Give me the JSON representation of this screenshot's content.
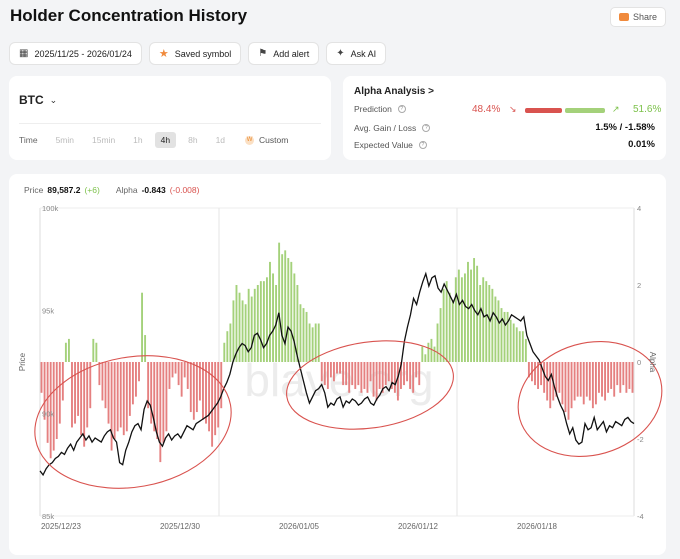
{
  "page_title": "Holder Concentration History",
  "share_label": "Share",
  "toolbar": {
    "date_range": "2025/11/25 - 2026/01/24",
    "saved_label": "Saved symbol",
    "alert_label": "Add alert",
    "ai_label": "Ask AI",
    "icons": [
      "calendar-icon",
      "star-icon",
      "bell-icon",
      "ai-icon"
    ]
  },
  "selector": {
    "symbol": "BTC",
    "time_label": "Time",
    "timeframes": [
      "5min",
      "15min",
      "1h",
      "4h",
      "8h",
      "1d"
    ],
    "active_timeframe": "4h",
    "custom_label": "Custom"
  },
  "alpha": {
    "title": "Alpha Analysis",
    "title_arrow": ">",
    "prediction_label": "Prediction",
    "prediction_down": "48.4%",
    "prediction_up": "51.6%",
    "gain_loss_label": "Avg. Gain / Loss",
    "gain_loss_value": "1.5% / -1.58%",
    "expected_label": "Expected Value",
    "expected_value": "0.01%",
    "colors": {
      "down": "#d9534f",
      "up": "#7cc14a"
    }
  },
  "legend": {
    "price_label": "Price",
    "price_value": "89,587.2",
    "price_change": "(+6)",
    "alpha_label": "Alpha",
    "alpha_value": "-0.843",
    "alpha_change": "(-0.008)"
  },
  "chart_data": {
    "type": "bar",
    "xlabel": "",
    "ylabel_left": "Price",
    "ylabel_right": "Alpha",
    "x_ticks": [
      "2025/12/23",
      "2025/12/30",
      "2026/01/05",
      "2026/01/12",
      "2026/01/18"
    ],
    "y_left_ticks": [
      "100k",
      "95k",
      "90k",
      "85k"
    ],
    "y_left_range": [
      85000,
      100000
    ],
    "y_right_ticks": [
      "4",
      "2",
      "0",
      "-2",
      "-4"
    ],
    "y_right_range": [
      -4,
      4
    ],
    "watermark": "blave.org",
    "colors": {
      "positive": "#a4d17a",
      "negative": "#e58080",
      "price": "#111111",
      "annotation": "#d9534f"
    },
    "alpha_series": [
      -0.8,
      -1.5,
      -2.1,
      -2.5,
      -2.3,
      -2.0,
      -1.6,
      -1.0,
      0.5,
      0.6,
      -1.7,
      -1.6,
      -1.4,
      -1.9,
      -2.2,
      -1.7,
      -1.2,
      0.6,
      0.5,
      -0.6,
      -1.0,
      -1.2,
      -1.6,
      -2.3,
      -2.0,
      -1.8,
      -1.7,
      -1.9,
      -1.8,
      -1.4,
      -1.1,
      -0.9,
      -0.5,
      1.8,
      0.7,
      -1.2,
      -1.6,
      -1.8,
      -2.0,
      -2.6,
      -2.1,
      -1.8,
      -0.7,
      -0.4,
      -0.3,
      -0.6,
      -0.9,
      -0.4,
      -0.7,
      -1.3,
      -1.5,
      -1.3,
      -1.0,
      -1.5,
      -1.6,
      -1.8,
      -2.2,
      -1.9,
      -1.7,
      -1.2,
      0.5,
      0.8,
      1.0,
      1.6,
      2.0,
      1.8,
      1.6,
      1.5,
      1.9,
      1.7,
      1.9,
      2.0,
      2.1,
      2.1,
      2.2,
      2.6,
      2.3,
      2.0,
      3.1,
      2.8,
      2.9,
      2.7,
      2.6,
      2.3,
      2.0,
      1.5,
      1.4,
      1.3,
      1.0,
      0.9,
      1.0,
      1.0,
      -0.5,
      -0.6,
      -0.7,
      -0.4,
      -0.5,
      -0.3,
      -0.3,
      -0.6,
      -0.6,
      -0.8,
      -0.6,
      -0.7,
      -0.6,
      -0.8,
      -0.7,
      -0.8,
      -0.5,
      -0.9,
      -1.0,
      -0.7,
      -0.8,
      -0.6,
      -0.5,
      -0.7,
      -0.8,
      -1.0,
      -0.7,
      -0.6,
      -0.5,
      -0.7,
      -0.8,
      -0.4,
      -0.6,
      0.4,
      0.2,
      0.5,
      0.6,
      0.4,
      1.0,
      1.4,
      1.9,
      2.1,
      1.8,
      1.6,
      2.2,
      2.4,
      2.2,
      2.3,
      2.6,
      2.4,
      2.7,
      2.5,
      2.0,
      2.2,
      2.1,
      2.0,
      1.9,
      1.7,
      1.6,
      1.4,
      1.3,
      1.3,
      1.1,
      1.0,
      0.9,
      0.8,
      0.8,
      0.6,
      -0.4,
      -0.5,
      -0.6,
      -0.7,
      -0.6,
      -0.8,
      -1.0,
      -1.2,
      -1.0,
      -0.9,
      -0.8,
      -1.1,
      -1.3,
      -1.5,
      -1.2,
      -1.0,
      -0.9,
      -0.9,
      -1.1,
      -0.9,
      -1.0,
      -1.2,
      -1.1,
      -0.8,
      -0.9,
      -1.0,
      -0.8,
      -0.7,
      -0.9,
      -0.6,
      -0.8,
      -0.6,
      -0.8,
      -0.7,
      -0.8
    ],
    "price_series": [
      87200,
      87000,
      87300,
      87500,
      87600,
      87800,
      87900,
      88100,
      88000,
      88300,
      88500,
      88200,
      88600,
      88800,
      89000,
      88700,
      88900,
      88600,
      88800,
      88700,
      88600,
      88900,
      89100,
      89200,
      88800,
      88600,
      87600,
      87500,
      88200,
      88600,
      89100,
      89400,
      89500,
      89200,
      90200,
      90600,
      90400,
      89800,
      89100,
      88600,
      88400,
      88800,
      89000,
      88700,
      88900,
      89000,
      88800,
      89100,
      89400,
      89300,
      89200,
      89500,
      89600,
      89700,
      89800,
      89900,
      90100,
      90300,
      90500,
      90800,
      91200,
      91500,
      91900,
      92500,
      92900,
      93200,
      93400,
      93300,
      93000,
      93200,
      93800,
      93900,
      93600,
      93200,
      93400,
      93800,
      94000,
      94300,
      94900,
      93800,
      93400,
      94200,
      94000,
      93500,
      92800,
      92200,
      91600,
      91000,
      90500,
      90800,
      91100,
      91200,
      91400,
      91000,
      90300,
      90500,
      90400,
      90700,
      90800,
      90300,
      90600,
      90500,
      90700,
      90600,
      90400,
      90500,
      90700,
      90800,
      90500,
      90400,
      90700,
      90900,
      91200,
      91300,
      91100,
      91500,
      91400,
      91800,
      92400,
      93500,
      94200,
      94800,
      95600,
      95300,
      95900,
      96400,
      96800,
      96200,
      96600,
      96700,
      96100,
      95900,
      96300,
      96000,
      95700,
      95400,
      95800,
      95300,
      95500,
      95200,
      95100,
      95300,
      95000,
      94800,
      95100,
      94700,
      94800,
      94500,
      94900,
      94700,
      94400,
      94600,
      94300,
      94500,
      94800,
      94700,
      94600,
      94500,
      94700,
      93800,
      93400,
      93000,
      92800,
      92600,
      92200,
      91800,
      91600,
      91900,
      91300,
      90800,
      90400,
      90100,
      89500,
      89000,
      89300,
      88700,
      88500,
      88600,
      89500,
      89200,
      89300,
      89800,
      89200,
      89400,
      89600,
      89100,
      89400,
      89300,
      89600,
      89500,
      89400,
      89700,
      89800,
      89600,
      89500
    ]
  }
}
